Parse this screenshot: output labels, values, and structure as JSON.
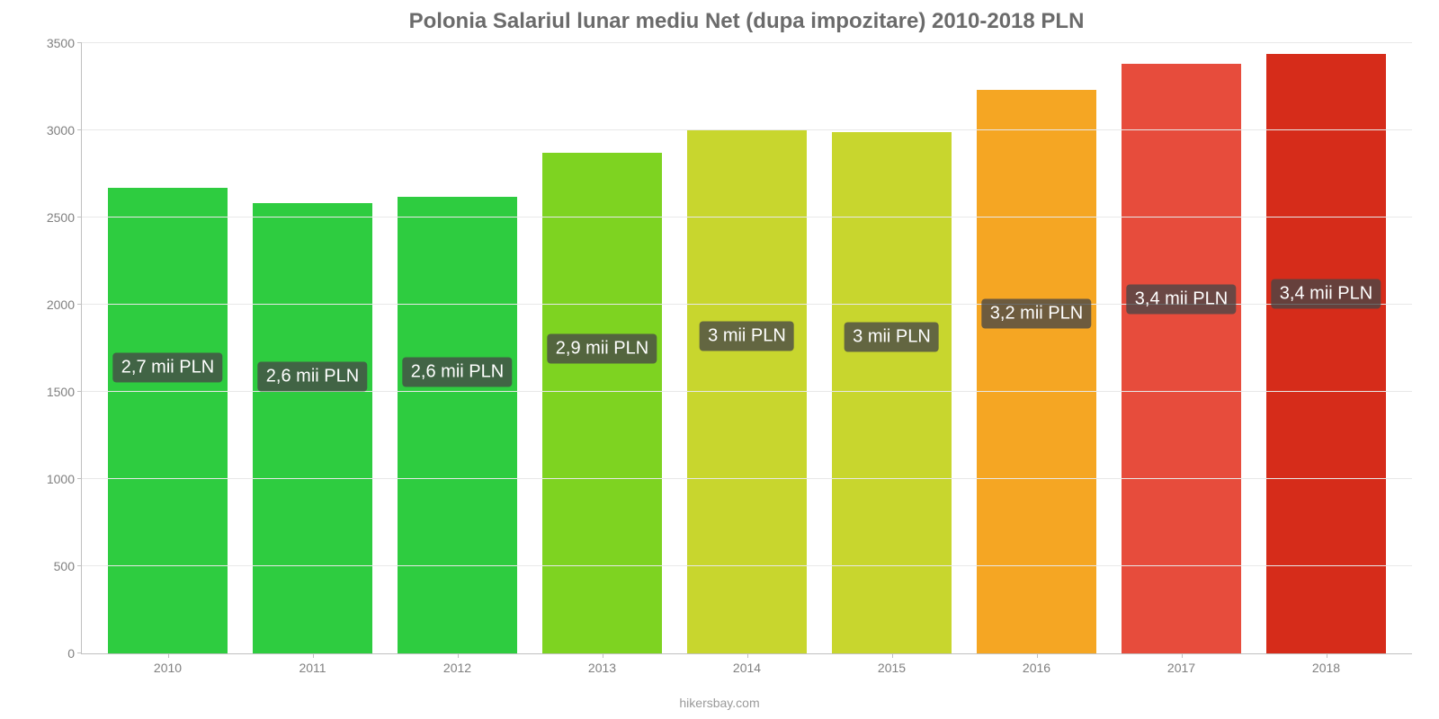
{
  "chart": {
    "type": "bar",
    "title": "Polonia Salariul lunar mediu Net (dupa impozitare) 2010-2018 PLN",
    "title_color": "#6b6b6b",
    "title_fontsize": 24,
    "background_color": "#ffffff",
    "grid_color": "#e8e8e8",
    "axis_color": "#c0c0c0",
    "tick_label_color": "#808080",
    "tick_label_fontsize": 14,
    "bar_label_bg": "rgba(70,70,70,0.78)",
    "bar_label_color": "#ffffff",
    "bar_label_fontsize": 20,
    "categories": [
      "2010",
      "2011",
      "2012",
      "2013",
      "2014",
      "2015",
      "2016",
      "2017",
      "2018"
    ],
    "values": [
      2670,
      2580,
      2620,
      2870,
      3000,
      2990,
      3230,
      3380,
      3440
    ],
    "bar_labels": [
      "2,7 mii PLN",
      "2,6 mii PLN",
      "2,6 mii PLN",
      "2,9 mii PLN",
      "3 mii PLN",
      "3 mii PLN",
      "3,2 mii PLN",
      "3,4 mii PLN",
      "3,4 mii PLN"
    ],
    "bar_colors": [
      "#2ecc40",
      "#2ecc40",
      "#2ecc40",
      "#7ed321",
      "#c8d62e",
      "#c8d62e",
      "#f5a623",
      "#e74c3c",
      "#d62c1a"
    ],
    "ylim": [
      0,
      3500
    ],
    "ytick_step": 500,
    "yticks": [
      0,
      500,
      1000,
      1500,
      2000,
      2500,
      3000,
      3500
    ],
    "bar_width_pct": 82,
    "source": "hikersbay.com"
  }
}
